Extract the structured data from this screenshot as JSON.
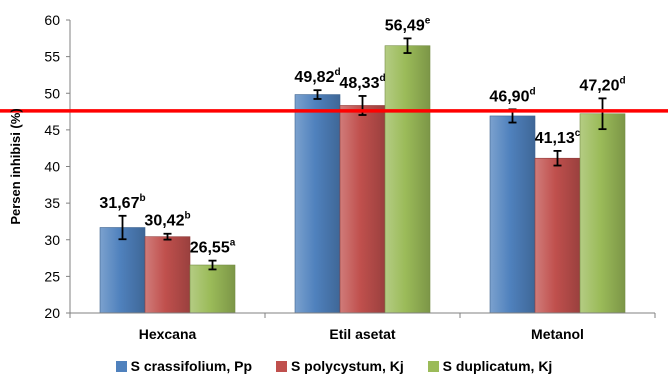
{
  "chart_data": {
    "type": "bar",
    "ylabel": "Persen inhibisi (%)",
    "xlabel": "",
    "ylim": [
      20,
      60
    ],
    "yticks": [
      "20",
      "25",
      "30",
      "35",
      "40",
      "45",
      "50",
      "55",
      "60"
    ],
    "categories": [
      "Hexcana",
      "Etil asetat",
      "Metanol"
    ],
    "series": [
      {
        "name": "S crassifolium, Pp",
        "color": "#4f81bd",
        "values": [
          31.67,
          49.82,
          46.9
        ],
        "errors": [
          1.6,
          0.6,
          0.9
        ],
        "labels": [
          "31,67",
          "49,82",
          "46,90"
        ],
        "superscripts": [
          "b",
          "d",
          "d"
        ]
      },
      {
        "name": "S polycystum, Kj",
        "color": "#c0504d",
        "values": [
          30.42,
          48.33,
          41.13
        ],
        "errors": [
          0.4,
          1.3,
          1.0
        ],
        "labels": [
          "30,42",
          "48,33",
          "41,13"
        ],
        "superscripts": [
          "b",
          "d",
          "c"
        ]
      },
      {
        "name": "S duplicatum, Kj",
        "color": "#9bbb59",
        "values": [
          26.55,
          56.49,
          47.2
        ],
        "errors": [
          0.6,
          1.0,
          2.1
        ],
        "labels": [
          "26,55",
          "56,49",
          "47,20"
        ],
        "superscripts": [
          "a",
          "e",
          "d"
        ]
      }
    ],
    "reference_line": {
      "value": 47.6,
      "color": "#ff0000"
    },
    "grid": false,
    "legend_position": "bottom"
  }
}
